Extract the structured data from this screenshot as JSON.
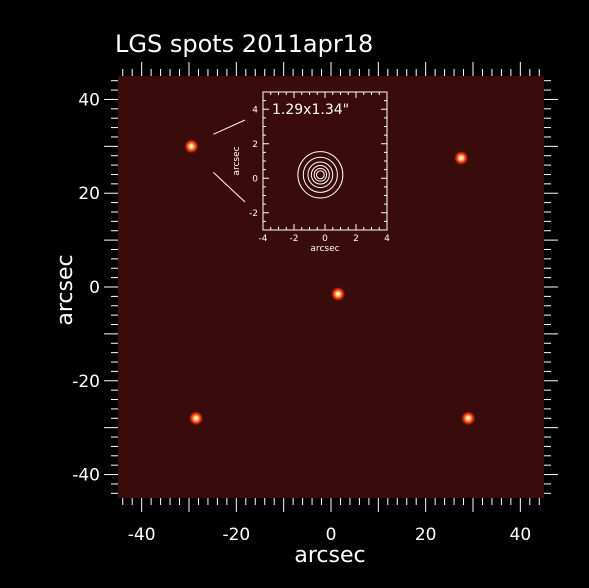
{
  "chart_data": {
    "type": "scatter",
    "title": "LGS spots 2011apr18",
    "xlabel": "arcsec",
    "ylabel": "arcsec",
    "xlim": [
      -45,
      45
    ],
    "ylim": [
      -45,
      45
    ],
    "xticks": [
      -40,
      -20,
      0,
      20,
      40
    ],
    "yticks": [
      -40,
      -20,
      0,
      20,
      40
    ],
    "points": [
      {
        "x": -29.5,
        "y": 30.0
      },
      {
        "x": 27.5,
        "y": 27.5
      },
      {
        "x": 1.5,
        "y": -1.5
      },
      {
        "x": -28.5,
        "y": -28.0
      },
      {
        "x": 29.0,
        "y": -28.0
      }
    ],
    "background_color": "#3a0b0b",
    "spot_color": "#ff3a1a",
    "inset": {
      "label": "1.29x1.34\"",
      "xlabel": "arcsec",
      "ylabel": "arcsec",
      "xlim": [
        -4,
        4
      ],
      "ylim": [
        -3,
        5
      ],
      "xticks": [
        -4,
        -2,
        0,
        2,
        4
      ],
      "yticks": [
        -2,
        0,
        2,
        4
      ],
      "contour_center": {
        "x": -0.3,
        "y": 0.2
      },
      "contour_radii": [
        1.45,
        1.1,
        0.8,
        0.58,
        0.4,
        0.25
      ]
    }
  }
}
